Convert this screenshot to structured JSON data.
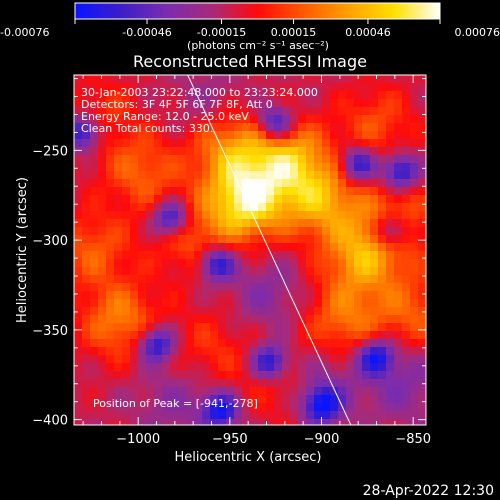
{
  "colorbar": {
    "tick_labels": [
      "-0.00076",
      "-0.00046",
      "-0.00015",
      "0.00015",
      "0.00046",
      "0.00076"
    ],
    "tick_values": [
      -0.00076,
      -0.00046,
      -0.00015,
      0.00015,
      0.00046,
      0.00076
    ],
    "range": [
      -0.00076,
      0.00076
    ],
    "units_label": "(photons cm⁻² s⁻¹ asec⁻²)",
    "colors": [
      "#0a14ff",
      "#3c1ec8",
      "#7a2cb0",
      "#a82a78",
      "#ff0a0a",
      "#ff5a00",
      "#ffa000",
      "#ffe000",
      "#ffffff"
    ]
  },
  "chart_data": {
    "type": "heatmap",
    "title": "Reconstructed RHESSI Image",
    "xlabel": "Heliocentric X (arcsec)",
    "ylabel": "Heliocentric Y (arcsec)",
    "xlim": [
      -1035,
      -843
    ],
    "ylim": [
      -403,
      -208
    ],
    "x_ticks": [
      -1000,
      -950,
      -900,
      -850
    ],
    "x_tick_labels": [
      "−1000",
      "−950",
      "−900",
      "−850"
    ],
    "y_ticks": [
      -400,
      -350,
      -300,
      -250
    ],
    "y_tick_labels": [
      "−400",
      "−350",
      "−300",
      "−250"
    ],
    "info_lines": [
      "30-Jan-2003 23:22:48.000 to 23:23:24.000",
      "Detectors: 3F 4F 5F 6F 7F 8F, Att 0",
      "Energy Range: 12.0 - 25.0 keV",
      "Clean     Total counts: 330."
    ],
    "peak_label": "Position of Peak = [-941,-278]",
    "peak": [
      -941,
      -278
    ],
    "limb_line": [
      [
        -973,
        -208
      ],
      [
        -884,
        -403
      ]
    ],
    "sources": [
      {
        "x": -941,
        "y": -278,
        "intensity": 0.00076
      },
      {
        "x": -918,
        "y": -255,
        "intensity": 0.00055
      },
      {
        "x": -900,
        "y": -278,
        "intensity": 0.0005
      },
      {
        "x": -950,
        "y": -248,
        "intensity": 0.00045
      },
      {
        "x": -1010,
        "y": -345,
        "intensity": 0.0004
      },
      {
        "x": -998,
        "y": -262,
        "intensity": 0.00032
      },
      {
        "x": -878,
        "y": -310,
        "intensity": 0.00048
      },
      {
        "x": -860,
        "y": -290,
        "intensity": 0.00035
      },
      {
        "x": -970,
        "y": -300,
        "intensity": 0.00028
      },
      {
        "x": -1025,
        "y": -305,
        "intensity": 0.0003
      },
      {
        "x": -888,
        "y": -345,
        "intensity": 0.00036
      },
      {
        "x": -850,
        "y": -340,
        "intensity": 0.0003
      },
      {
        "x": -920,
        "y": -380,
        "intensity": 0.00022
      },
      {
        "x": -960,
        "y": -360,
        "intensity": 0.0002
      },
      {
        "x": -1020,
        "y": -230,
        "intensity": 0.0002
      },
      {
        "x": -870,
        "y": -235,
        "intensity": 0.00026
      },
      {
        "x": -930,
        "y": -330,
        "intensity": -0.0002
      },
      {
        "x": -900,
        "y": -380,
        "intensity": -0.00025
      },
      {
        "x": -980,
        "y": -390,
        "intensity": -0.00018
      },
      {
        "x": -855,
        "y": -380,
        "intensity": -0.00022
      },
      {
        "x": -960,
        "y": -225,
        "intensity": -0.00015
      }
    ],
    "blue_spots": [
      {
        "x": -982,
        "y": -288
      },
      {
        "x": -957,
        "y": -313
      },
      {
        "x": -990,
        "y": -358
      },
      {
        "x": -880,
        "y": -258
      },
      {
        "x": -857,
        "y": -262
      },
      {
        "x": -862,
        "y": -295
      },
      {
        "x": -928,
        "y": -368
      },
      {
        "x": -900,
        "y": -392
      },
      {
        "x": -870,
        "y": -365
      },
      {
        "x": -925,
        "y": -235
      },
      {
        "x": -1030,
        "y": -240
      },
      {
        "x": -955,
        "y": -395
      }
    ]
  },
  "footer": {
    "timestamp": "28-Apr-2022 12:30"
  }
}
